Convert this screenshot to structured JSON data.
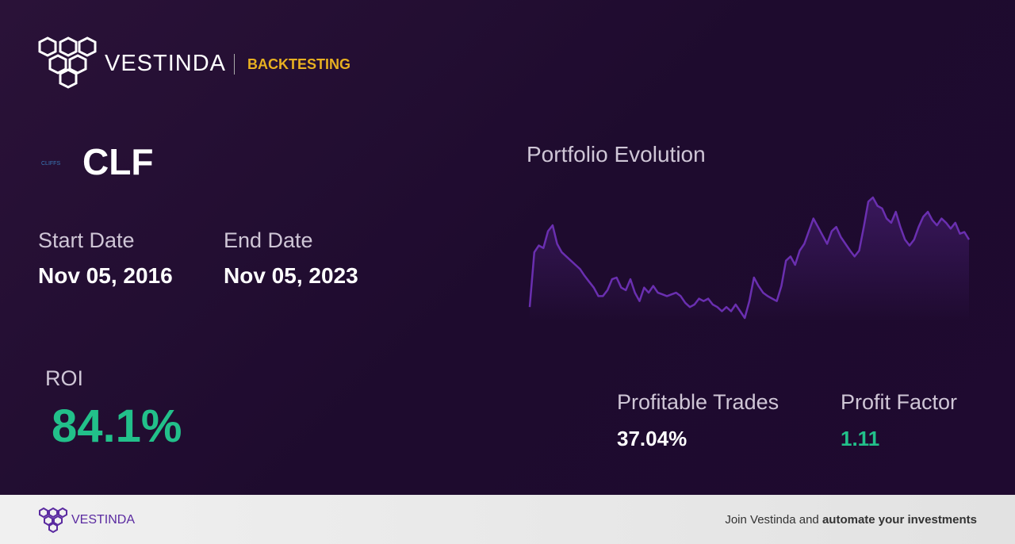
{
  "header": {
    "brand": "VESTINDA",
    "section": "BACKTESTING"
  },
  "asset": {
    "logo_text": "CLIFFS",
    "ticker": "CLF"
  },
  "dates": {
    "start_label": "Start Date",
    "start_value": "Nov 05, 2016",
    "end_label": "End Date",
    "end_value": "Nov 05, 2023"
  },
  "roi": {
    "label": "ROI",
    "value": "84.1%"
  },
  "stats": {
    "trades_label": "Profitable Trades",
    "trades_value": "37.04%",
    "factor_label": "Profit Factor",
    "factor_value": "1.11"
  },
  "chart_data": {
    "type": "line",
    "title": "Portfolio Evolution",
    "color": "#6a2fb0",
    "values": [
      15,
      80,
      88,
      85,
      105,
      112,
      90,
      80,
      75,
      70,
      65,
      60,
      52,
      45,
      38,
      28,
      28,
      35,
      48,
      50,
      38,
      35,
      48,
      32,
      22,
      38,
      32,
      40,
      32,
      30,
      28,
      30,
      32,
      28,
      20,
      15,
      18,
      25,
      22,
      25,
      18,
      15,
      10,
      15,
      10,
      18,
      10,
      2,
      22,
      50,
      40,
      32,
      28,
      25,
      22,
      40,
      70,
      75,
      65,
      82,
      90,
      105,
      120,
      110,
      100,
      90,
      105,
      110,
      98,
      90,
      82,
      75,
      82,
      110,
      140,
      145,
      135,
      132,
      120,
      115,
      128,
      110,
      95,
      88,
      95,
      110,
      122,
      128,
      118,
      112,
      120,
      115,
      108,
      115,
      102,
      104,
      95
    ]
  },
  "footer": {
    "brand": "VESTINDA",
    "cta_plain": "Join Vestinda and ",
    "cta_bold": "automate your investments"
  }
}
